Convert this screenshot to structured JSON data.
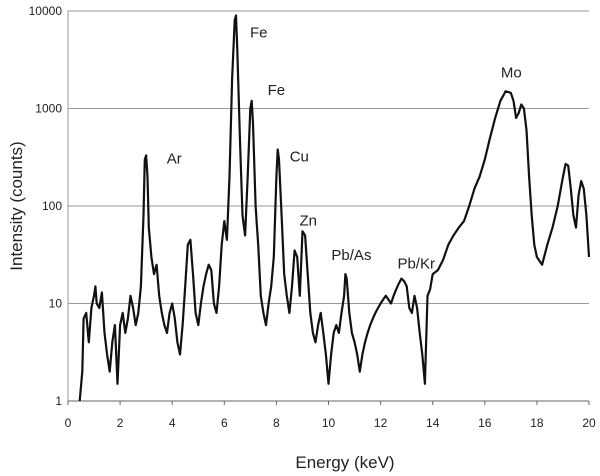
{
  "chart_data": {
    "type": "line",
    "title": "",
    "xlabel": "Energy (keV)",
    "ylabel": "Intensity (counts)",
    "xlim": [
      0,
      20
    ],
    "ylim": [
      1,
      10000
    ],
    "yscale": "log",
    "grid": "horizontal",
    "legend": "none",
    "x_ticks": [
      "0",
      "2",
      "4",
      "6",
      "8",
      "10",
      "12",
      "14",
      "16",
      "18",
      "20"
    ],
    "y_ticks": [
      "1",
      "10",
      "100",
      "1000",
      "10000"
    ],
    "line_color": "#111111",
    "grid_color": "#9a9a9a",
    "series": [
      {
        "x": [
          0.45,
          0.55,
          0.6,
          0.7,
          0.8,
          0.9,
          1.0,
          1.05,
          1.1,
          1.2,
          1.3,
          1.4,
          1.5,
          1.6,
          1.7,
          1.8,
          1.9,
          2.0,
          2.1,
          2.2,
          2.3,
          2.4,
          2.5,
          2.6,
          2.7,
          2.8,
          2.9,
          2.95,
          3.0,
          3.05,
          3.1,
          3.2,
          3.3,
          3.4,
          3.5,
          3.6,
          3.7,
          3.8,
          3.9,
          4.0,
          4.1,
          4.2,
          4.3,
          4.4,
          4.5,
          4.6,
          4.7,
          4.75,
          4.8,
          4.9,
          5.0,
          5.1,
          5.2,
          5.3,
          5.4,
          5.5,
          5.6,
          5.7,
          5.8,
          5.9,
          6.0,
          6.1,
          6.2,
          6.3,
          6.4,
          6.45,
          6.5,
          6.6,
          6.7,
          6.8,
          6.9,
          7.0,
          7.05,
          7.1,
          7.2,
          7.3,
          7.4,
          7.5,
          7.6,
          7.7,
          7.8,
          7.9,
          8.0,
          8.05,
          8.1,
          8.2,
          8.3,
          8.4,
          8.5,
          8.6,
          8.7,
          8.8,
          8.9,
          9.0,
          9.1,
          9.2,
          9.3,
          9.4,
          9.5,
          9.6,
          9.7,
          9.8,
          9.9,
          10.0,
          10.1,
          10.2,
          10.3,
          10.4,
          10.5,
          10.6,
          10.65,
          10.7,
          10.8,
          10.9,
          11.0,
          11.1,
          11.2,
          11.3,
          11.4,
          11.5,
          11.6,
          11.7,
          11.8,
          11.9,
          12.0,
          12.1,
          12.2,
          12.3,
          12.4,
          12.5,
          12.6,
          12.7,
          12.8,
          12.9,
          13.0,
          13.1,
          13.2,
          13.3,
          13.4,
          13.5,
          13.6,
          13.7,
          13.8,
          13.9,
          14.0,
          14.2,
          14.4,
          14.6,
          14.8,
          15.0,
          15.2,
          15.4,
          15.6,
          15.8,
          16.0,
          16.2,
          16.4,
          16.6,
          16.8,
          17.0,
          17.1,
          17.2,
          17.3,
          17.4,
          17.5,
          17.6,
          17.7,
          17.8,
          17.9,
          18.0,
          18.2,
          18.4,
          18.6,
          18.8,
          19.0,
          19.1,
          19.2,
          19.3,
          19.4,
          19.5,
          19.6,
          19.7,
          19.8,
          19.9,
          20.0
        ],
        "values": [
          1,
          2,
          7,
          8,
          4,
          9,
          12,
          15,
          10,
          9,
          13,
          5,
          3,
          2,
          4,
          6,
          1.5,
          6,
          8,
          5,
          7,
          12,
          9,
          6,
          8,
          15,
          80,
          300,
          330,
          200,
          60,
          30,
          20,
          25,
          12,
          8,
          6,
          5,
          8,
          10,
          7,
          4,
          3,
          6,
          15,
          40,
          45,
          30,
          20,
          8,
          6,
          10,
          15,
          20,
          25,
          22,
          10,
          8,
          15,
          40,
          70,
          45,
          200,
          2000,
          8000,
          9000,
          4000,
          500,
          80,
          50,
          200,
          1000,
          1200,
          700,
          100,
          40,
          12,
          8,
          6,
          10,
          15,
          30,
          200,
          380,
          300,
          80,
          20,
          12,
          8,
          15,
          35,
          30,
          12,
          55,
          50,
          20,
          8,
          5,
          4,
          6,
          8,
          5,
          3,
          1.5,
          3,
          5,
          6,
          5,
          8,
          12,
          20,
          18,
          8,
          5,
          4,
          3,
          2,
          3,
          4,
          5,
          6,
          7,
          8,
          9,
          10,
          11,
          12,
          11,
          10,
          12,
          14,
          16,
          18,
          17,
          15,
          9,
          8,
          12,
          9,
          5,
          3,
          1.5,
          12,
          14,
          20,
          22,
          28,
          40,
          50,
          60,
          70,
          100,
          150,
          200,
          300,
          500,
          800,
          1200,
          1500,
          1450,
          1200,
          800,
          900,
          1100,
          1000,
          600,
          200,
          80,
          40,
          30,
          25,
          40,
          60,
          100,
          200,
          270,
          260,
          150,
          80,
          60,
          130,
          180,
          150,
          80,
          30
        ]
      }
    ],
    "annotations": [
      {
        "text": "Ar",
        "x": 3.1,
        "y": 330
      },
      {
        "text": "Fe",
        "x": 6.45,
        "y": 9000
      },
      {
        "text": "Fe",
        "x": 7.05,
        "y": 1200
      },
      {
        "text": "Cu",
        "x": 8.05,
        "y": 380
      },
      {
        "text": "Zn",
        "x": 9.0,
        "y": 55
      },
      {
        "text": "Pb/As",
        "x": 10.65,
        "y": 20
      },
      {
        "text": "Pb/Kr",
        "x": 12.8,
        "y": 18
      },
      {
        "text": "Mo",
        "x": 17.0,
        "y": 1500
      }
    ]
  }
}
